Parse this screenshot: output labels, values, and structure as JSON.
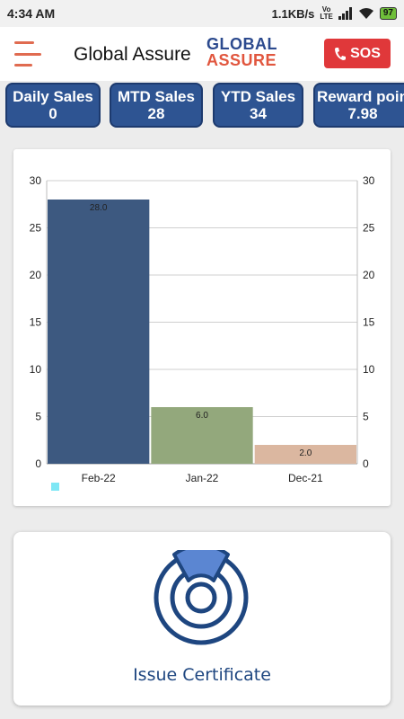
{
  "status_bar": {
    "time": "4:34 AM",
    "network_speed": "1.1KB/s",
    "volte_label": "Vo LTE",
    "battery": "97",
    "icons": [
      "signal-icon",
      "wifi-icon",
      "battery-icon"
    ]
  },
  "app_bar": {
    "title": "Global Assure",
    "logo_line1": "GLOBAL",
    "logo_line2": "ASSURE",
    "sos_label": "SOS",
    "menu_icon": "menu-icon",
    "phone_icon": "phone-icon"
  },
  "stats": [
    {
      "label": "Daily Sales",
      "value": "0"
    },
    {
      "label": "MTD Sales",
      "value": "28"
    },
    {
      "label": "YTD Sales",
      "value": "34"
    },
    {
      "label": "Reward poin",
      "value": "7.98"
    }
  ],
  "chart_data": {
    "type": "bar",
    "categories": [
      "Feb-22",
      "Jan-22",
      "Dec-21"
    ],
    "values": [
      28.0,
      6.0,
      2.0
    ],
    "value_labels": [
      "28.0",
      "6.0",
      "2.0"
    ],
    "colors": [
      "#3d5980",
      "#93a87c",
      "#dbb7a0"
    ],
    "ylim": [
      0,
      30
    ],
    "yticks": [
      "0",
      "5",
      "10",
      "15",
      "20",
      "25",
      "30"
    ],
    "grid": true,
    "legend_color": "#7ee7f5",
    "title": "",
    "xlabel": "",
    "ylabel": ""
  },
  "certificate": {
    "label": "Issue Certificate",
    "icon": "certificate-target-icon",
    "icon_colors": {
      "outer": "#1e4680",
      "segment": "#5b86d2"
    }
  }
}
